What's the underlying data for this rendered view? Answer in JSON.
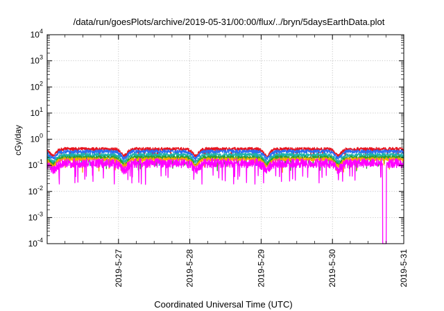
{
  "chart_data": {
    "type": "line",
    "title": "/data/run/goesPlots/archive/2019-05-31/00:00/flux/../bryn/5daysEarthData.plot",
    "xlabel": "Coordinated Universal Time (UTC)",
    "ylabel": "cGy/day",
    "yscale": "log",
    "ylim": [
      0.0001,
      10000
    ],
    "xlim": [
      "2019-05-26 00:00",
      "2019-05-31 00:00"
    ],
    "grid": true,
    "y_ticks": [
      {
        "base": "10",
        "exp": "4"
      },
      {
        "base": "10",
        "exp": "3"
      },
      {
        "base": "10",
        "exp": "2"
      },
      {
        "base": "10",
        "exp": "1"
      },
      {
        "base": "10",
        "exp": "0"
      },
      {
        "base": "10",
        "exp": "-1"
      },
      {
        "base": "10",
        "exp": "-2"
      },
      {
        "base": "10",
        "exp": "-3"
      },
      {
        "base": "10",
        "exp": "-4"
      }
    ],
    "x_ticks": [
      "2019-5-27",
      "2019-5-28",
      "2019-5-29",
      "2019-5-30",
      "2019-5-31"
    ],
    "series": [
      {
        "color": "#e8141e",
        "typical": 0.42,
        "minimum": 0.2
      },
      {
        "color": "#2a6df4",
        "typical": 0.34,
        "minimum": 0.16
      },
      {
        "color": "#20b2aa",
        "typical": 0.25,
        "minimum": 0.12
      },
      {
        "color": "#2ca02c",
        "typical": 0.2,
        "minimum": 0.1
      },
      {
        "color": "#ffa500",
        "typical": 0.17,
        "minimum": 0.09
      },
      {
        "color": "#ff00ff",
        "typical": 0.12,
        "minimum": 0.03
      }
    ],
    "notable_drops": [
      {
        "series_color": "#ff00ff",
        "at": "2019-05-30 17:30",
        "value": 0.0001
      }
    ]
  }
}
